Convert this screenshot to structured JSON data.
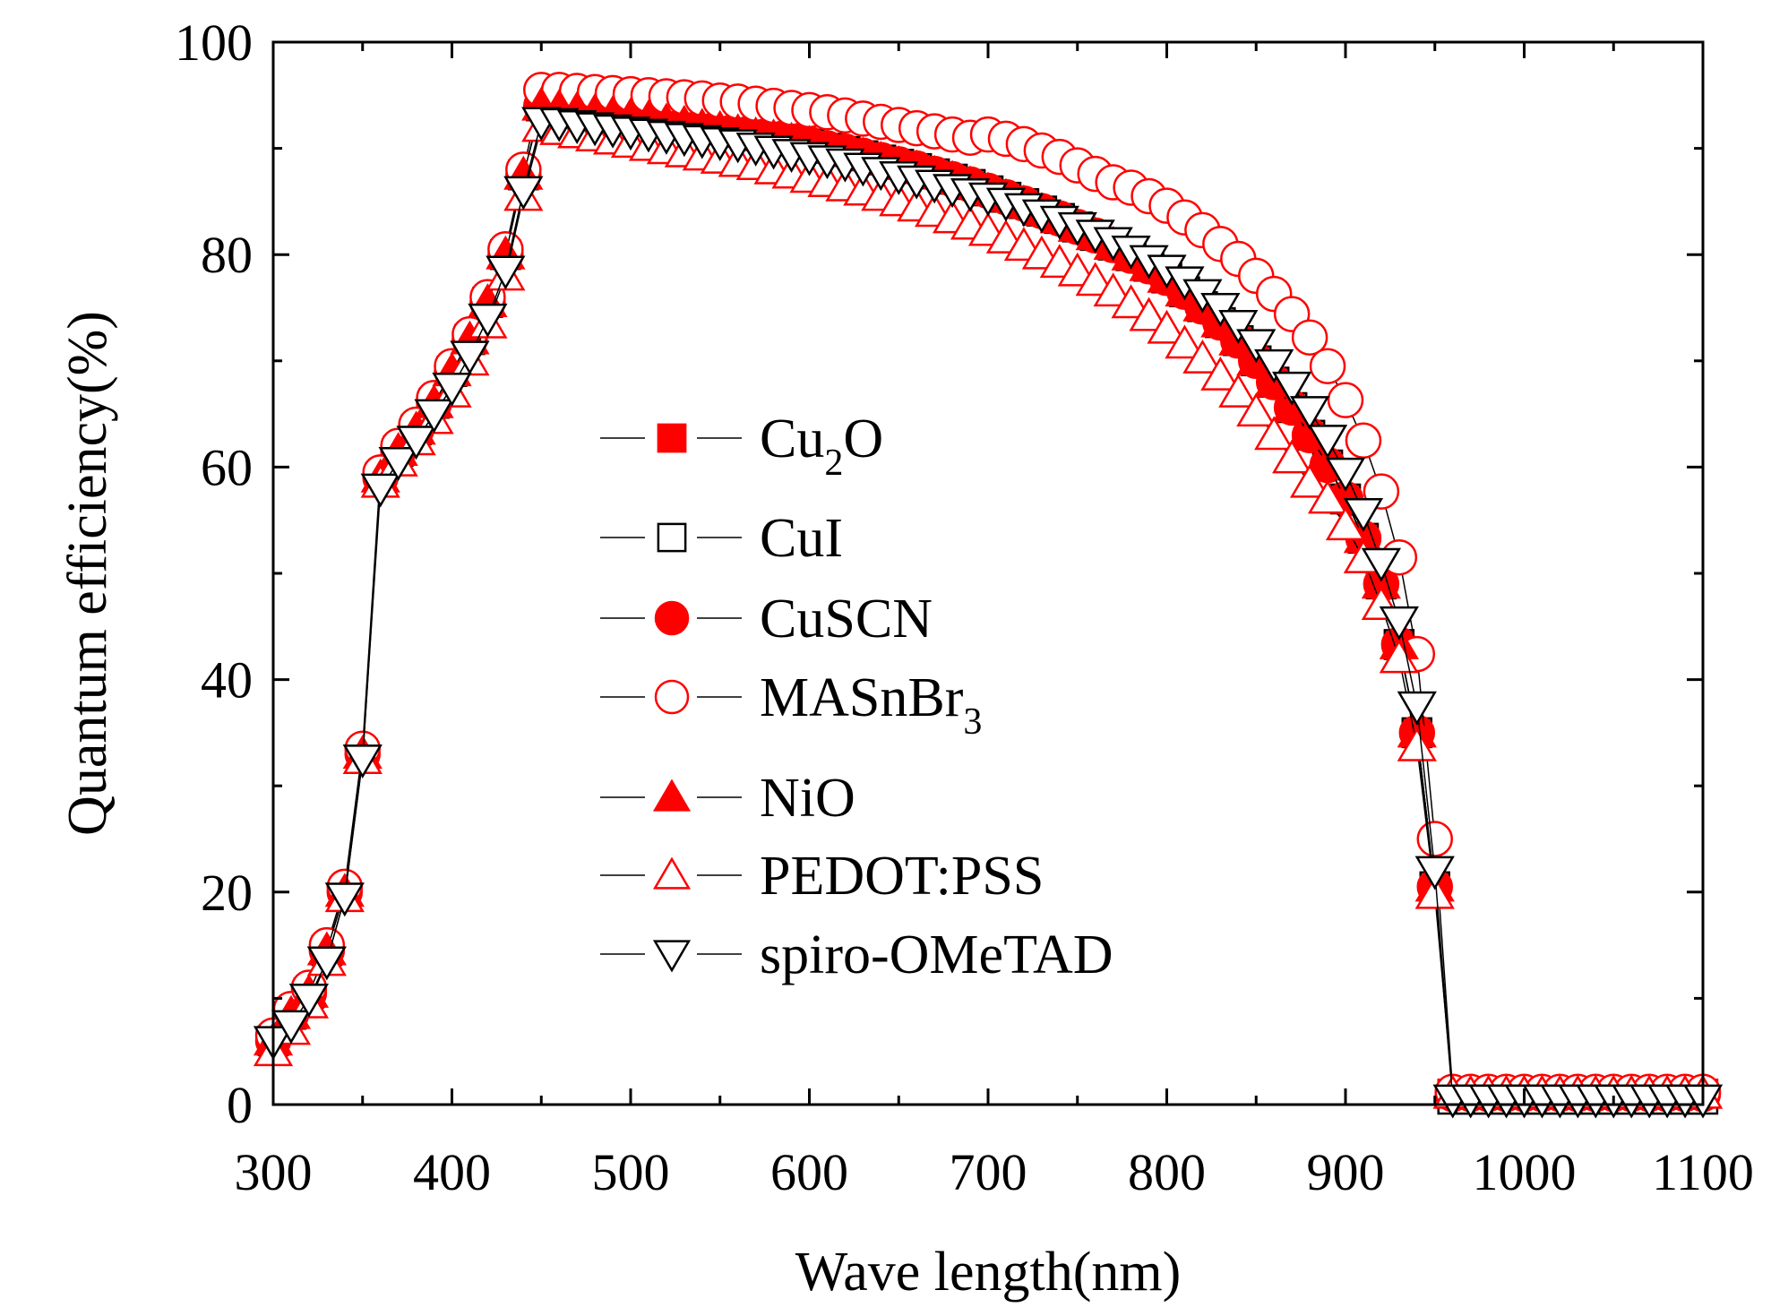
{
  "chart_data": {
    "type": "line",
    "title": "",
    "xlabel": "Wave length(nm)",
    "ylabel": "Quantum efficiency(%)",
    "xlim": [
      300,
      1100
    ],
    "ylim": [
      0,
      100
    ],
    "xticks": [
      "300",
      "400",
      "500",
      "600",
      "700",
      "800",
      "900",
      "1000",
      "1100"
    ],
    "yticks": [
      "0",
      "20",
      "40",
      "60",
      "80",
      "100"
    ],
    "grid": false,
    "legend_position": "center-left",
    "x_start": 300,
    "x_step": 10,
    "series": [
      {
        "key": "cu2o",
        "label_parts": [
          "Cu",
          "2",
          "O"
        ],
        "marker": "square",
        "filled": true,
        "color": "#ff0000",
        "values": [
          6,
          8.5,
          10.5,
          14.5,
          20,
          33,
          59,
          61.5,
          63.5,
          66,
          69,
          72,
          75.5,
          80,
          87.5,
          94,
          93.8,
          93.6,
          93.4,
          93.2,
          93,
          92.8,
          92.5,
          92.3,
          92,
          91.8,
          91.5,
          91.2,
          91,
          90.7,
          90.4,
          90,
          89.7,
          89.3,
          88.9,
          88.5,
          88.1,
          87.6,
          87.1,
          86.6,
          86,
          85.4,
          84.8,
          84.1,
          83.4,
          82.6,
          81.8,
          80.9,
          79.9,
          78.9,
          77.8,
          76.5,
          75.1,
          73.6,
          71.9,
          70,
          68,
          65.6,
          63,
          60.2,
          57,
          53.3,
          49,
          43.3,
          35,
          20.5,
          1,
          1,
          1,
          1,
          1,
          1,
          1,
          1,
          1,
          1,
          1,
          1,
          1,
          1,
          1
        ]
      },
      {
        "key": "cui",
        "label_parts": [
          "CuI",
          "",
          ""
        ],
        "marker": "square",
        "filled": false,
        "color": "#000000",
        "values": [
          6,
          8.5,
          10.5,
          14.5,
          20,
          33,
          59,
          61.5,
          63.5,
          66,
          69,
          72,
          75.5,
          80,
          87.5,
          94,
          93.8,
          93.6,
          93.4,
          93.2,
          93,
          92.8,
          92.5,
          92.3,
          92,
          91.8,
          91.5,
          91.2,
          91,
          90.7,
          90.4,
          90,
          89.7,
          89.3,
          88.9,
          88.5,
          88.1,
          87.6,
          87.1,
          86.6,
          86,
          85.4,
          84.8,
          84.1,
          83.4,
          82.6,
          81.8,
          80.9,
          79.9,
          78.9,
          77.8,
          76.5,
          75.1,
          73.6,
          71.9,
          70,
          68,
          65.6,
          63,
          60.2,
          57,
          53.3,
          49,
          43.3,
          35,
          20.5,
          0.5,
          0.5,
          0.5,
          0.5,
          0.5,
          0.5,
          0.5,
          0.5,
          0.5,
          0.5,
          0.5,
          0.5,
          0.5,
          0.5,
          0.5
        ]
      },
      {
        "key": "cuscn",
        "label_parts": [
          "CuSCN",
          "",
          ""
        ],
        "marker": "circle",
        "filled": true,
        "color": "#ff0000",
        "values": [
          6,
          8.5,
          10.5,
          14.5,
          20,
          33,
          59,
          61.5,
          63.5,
          66,
          69,
          72,
          75.5,
          80,
          87.5,
          94,
          93.8,
          93.6,
          93.4,
          93.2,
          93,
          92.8,
          92.5,
          92.3,
          92,
          91.8,
          91.5,
          91.2,
          91,
          90.7,
          90.4,
          90,
          89.7,
          89.3,
          88.9,
          88.5,
          88.1,
          87.6,
          87.1,
          86.6,
          86,
          85.4,
          84.8,
          84.1,
          83.4,
          82.6,
          81.8,
          80.9,
          79.9,
          78.9,
          77.8,
          76.5,
          75.1,
          73.6,
          71.9,
          70,
          68,
          65.6,
          63,
          60.2,
          57,
          53.3,
          49,
          43.3,
          35,
          20.5,
          1,
          1,
          1,
          1,
          1,
          1,
          1,
          1,
          1,
          1,
          1,
          1,
          1,
          1,
          1
        ]
      },
      {
        "key": "masnbr3",
        "label_parts": [
          "MASnBr",
          "3",
          ""
        ],
        "marker": "circle",
        "filled": false,
        "color": "#ff0000",
        "values": [
          6.5,
          9,
          11,
          15,
          20.5,
          33.5,
          59.5,
          62,
          64,
          66.5,
          69.5,
          72.5,
          76,
          80.5,
          88,
          95.5,
          95.5,
          95.4,
          95.3,
          95.2,
          95.1,
          95,
          94.9,
          94.8,
          94.7,
          94.5,
          94.4,
          94.2,
          94,
          93.8,
          93.6,
          93.4,
          93.1,
          92.8,
          92.5,
          92.2,
          91.9,
          91.6,
          91.3,
          91,
          91.3,
          90.9,
          90.4,
          89.8,
          89.2,
          88.4,
          87.6,
          86.8,
          86.3,
          85.5,
          84.6,
          83.5,
          82.3,
          81,
          79.6,
          78,
          76.3,
          74.4,
          72.2,
          69.5,
          66.3,
          62.5,
          57.7,
          51.5,
          42.4,
          25,
          1.2,
          1.2,
          1.2,
          1.2,
          1.2,
          1.2,
          1.2,
          1.2,
          1.2,
          1.2,
          1.2,
          1.2,
          1.2,
          1.2,
          1.2
        ]
      },
      {
        "key": "nio",
        "label_parts": [
          "NiO",
          "",
          ""
        ],
        "marker": "triangle-up",
        "filled": true,
        "color": "#ff0000",
        "values": [
          6,
          8.5,
          10.5,
          14.5,
          20,
          33,
          59,
          61.5,
          63.5,
          66,
          69,
          72,
          75.5,
          80,
          87.5,
          94,
          93.8,
          93.6,
          93.4,
          93.2,
          93,
          92.8,
          92.5,
          92.3,
          92,
          91.8,
          91.5,
          91.2,
          91,
          90.7,
          90.4,
          90,
          89.7,
          89.3,
          88.9,
          88.5,
          88.1,
          87.6,
          87.1,
          86.6,
          86,
          85.4,
          84.8,
          84.1,
          83.4,
          82.6,
          81.8,
          80.9,
          79.9,
          78.9,
          77.8,
          76.5,
          75.1,
          73.6,
          71.9,
          70,
          68,
          65.6,
          63,
          60.2,
          57,
          53.3,
          49,
          43.3,
          35,
          20.5,
          1,
          1,
          1,
          1,
          1,
          1,
          1,
          1,
          1,
          1,
          1,
          1,
          1,
          1,
          1
        ]
      },
      {
        "key": "pedot",
        "label_parts": [
          "PEDOT:PSS",
          "",
          ""
        ],
        "marker": "triangle-up",
        "filled": false,
        "color": "#ff0000",
        "values": [
          5,
          7,
          9.5,
          13.5,
          19.5,
          32.5,
          58.5,
          60.5,
          62.5,
          64.5,
          67,
          70,
          73.5,
          78,
          85.5,
          92,
          91.7,
          91.4,
          91.1,
          90.8,
          90.5,
          90.2,
          89.9,
          89.6,
          89.3,
          89,
          88.7,
          88.4,
          88,
          87.6,
          87.2,
          86.8,
          86.4,
          86,
          85.5,
          85,
          84.5,
          84,
          83.4,
          82.8,
          82.2,
          81.5,
          80.8,
          80,
          79.2,
          78.4,
          77.5,
          76.5,
          75.4,
          74.2,
          73,
          71.6,
          70.2,
          68.6,
          67,
          65.2,
          63,
          60.8,
          58.5,
          57,
          54.5,
          51.4,
          47,
          42,
          33.7,
          19.8,
          1,
          1,
          1,
          1,
          1,
          1,
          1,
          1,
          1,
          1,
          1,
          1,
          1,
          1,
          1
        ]
      },
      {
        "key": "spiro",
        "label_parts": [
          "spiro-OMeTAD",
          "",
          ""
        ],
        "marker": "triangle-down",
        "filled": false,
        "color": "#000000",
        "values": [
          6,
          7.5,
          10,
          13.5,
          19.5,
          32.5,
          58,
          60.5,
          62.5,
          65,
          67.5,
          70.5,
          74,
          78.5,
          86,
          92.5,
          92.4,
          92.2,
          92,
          91.8,
          91.6,
          91.4,
          91.2,
          91,
          90.8,
          90.6,
          90.4,
          90.1,
          89.8,
          89.5,
          89.2,
          88.9,
          88.6,
          88.2,
          87.8,
          87.4,
          87,
          86.6,
          86.2,
          85.8,
          85.4,
          84.9,
          84.4,
          83.8,
          83.2,
          82.6,
          81.9,
          81.2,
          80.4,
          79.5,
          78.6,
          77.5,
          76.3,
          75,
          73.4,
          71.6,
          69.7,
          67.6,
          65.3,
          62.6,
          59.5,
          55.7,
          51,
          45.5,
          37.5,
          22,
          0.5,
          0.5,
          0.5,
          0.5,
          0.5,
          0.5,
          0.5,
          0.5,
          0.5,
          0.5,
          0.5,
          0.5,
          0.5,
          0.5,
          0.5
        ]
      }
    ]
  }
}
